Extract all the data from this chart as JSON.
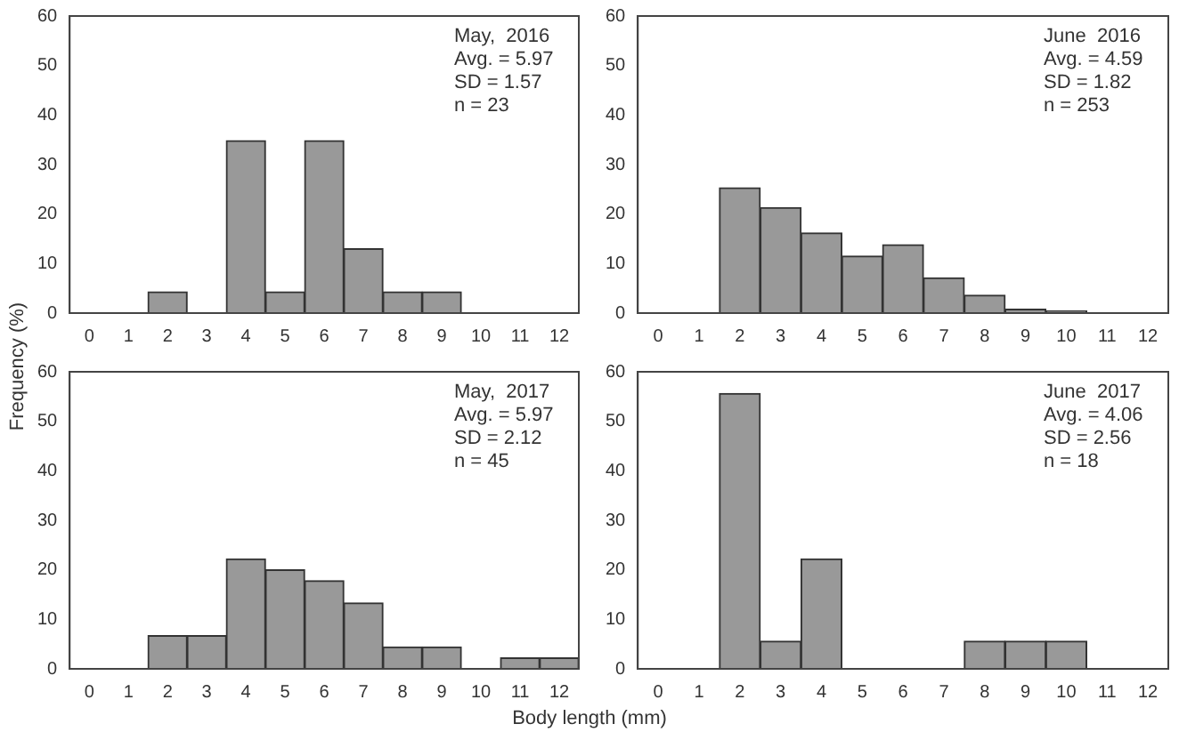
{
  "chart_data": [
    {
      "type": "histogram",
      "ylabel": "Frequency (%)",
      "bins": [
        -0.5,
        0.5,
        1.5,
        2.5,
        3.5,
        4.5,
        5.5,
        6.5,
        7.5,
        8.5,
        9.5,
        10.5,
        11.5,
        12.5
      ],
      "values": [
        0,
        0,
        4.3,
        0,
        34.8,
        4.3,
        34.8,
        13,
        4.3,
        4.3,
        0,
        0,
        0
      ],
      "color": "#999999",
      "xlim": [
        -0.5,
        12.5
      ],
      "xticks": [
        0,
        1,
        2,
        3,
        4,
        5,
        6,
        7,
        8,
        9,
        10,
        11,
        12
      ],
      "ylim": [
        0,
        60
      ],
      "yticks": [
        0,
        10,
        20,
        30,
        40,
        50,
        60
      ],
      "grid": false,
      "legend": false,
      "annotations": [
        "May,  2016",
        "Avg. = 5.97",
        "SD = 1.57",
        "n = 23"
      ]
    },
    {
      "type": "histogram",
      "bins": [
        -0.5,
        0.5,
        1.5,
        2.5,
        3.5,
        4.5,
        5.5,
        6.5,
        7.5,
        8.5,
        9.5,
        10.5,
        11.5,
        12.5
      ],
      "values": [
        0,
        0,
        25.3,
        21.3,
        16.2,
        11.5,
        13.8,
        7.1,
        3.6,
        0.8,
        0.4,
        0,
        0
      ],
      "color": "#999999",
      "xlim": [
        -0.5,
        12.5
      ],
      "xticks": [
        0,
        1,
        2,
        3,
        4,
        5,
        6,
        7,
        8,
        9,
        10,
        11,
        12
      ],
      "ylim": [
        0,
        60
      ],
      "yticks": [
        0,
        10,
        20,
        30,
        40,
        50,
        60
      ],
      "grid": false,
      "legend": false,
      "annotations": [
        "June  2016",
        "Avg. = 4.59",
        "SD = 1.82",
        "n = 253"
      ]
    },
    {
      "type": "histogram",
      "xlabel": "Body length (mm)",
      "bins": [
        -0.5,
        0.5,
        1.5,
        2.5,
        3.5,
        4.5,
        5.5,
        6.5,
        7.5,
        8.5,
        9.5,
        10.5,
        11.5,
        12.5
      ],
      "values": [
        0,
        0,
        6.7,
        6.7,
        22.2,
        20,
        17.8,
        13.3,
        4.4,
        4.4,
        0,
        2.2,
        2.2
      ],
      "color": "#999999",
      "xlim": [
        -0.5,
        12.5
      ],
      "xticks": [
        0,
        1,
        2,
        3,
        4,
        5,
        6,
        7,
        8,
        9,
        10,
        11,
        12
      ],
      "ylim": [
        0,
        60
      ],
      "yticks": [
        0,
        10,
        20,
        30,
        40,
        50,
        60
      ],
      "grid": false,
      "legend": false,
      "annotations": [
        "May,  2017",
        "Avg. = 5.97",
        "SD = 2.12",
        "n = 45"
      ]
    },
    {
      "type": "histogram",
      "bins": [
        -0.5,
        0.5,
        1.5,
        2.5,
        3.5,
        4.5,
        5.5,
        6.5,
        7.5,
        8.5,
        9.5,
        10.5,
        11.5,
        12.5
      ],
      "values": [
        0,
        0,
        55.6,
        5.6,
        22.2,
        0,
        0,
        0,
        5.6,
        5.6,
        5.6,
        0,
        0
      ],
      "color": "#999999",
      "xlim": [
        -0.5,
        12.5
      ],
      "xticks": [
        0,
        1,
        2,
        3,
        4,
        5,
        6,
        7,
        8,
        9,
        10,
        11,
        12
      ],
      "ylim": [
        0,
        60
      ],
      "yticks": [
        0,
        10,
        20,
        30,
        40,
        50,
        60
      ],
      "grid": false,
      "legend": false,
      "annotations": [
        "June  2017",
        "Avg. = 4.06",
        "SD = 2.56",
        "n = 18"
      ]
    }
  ]
}
